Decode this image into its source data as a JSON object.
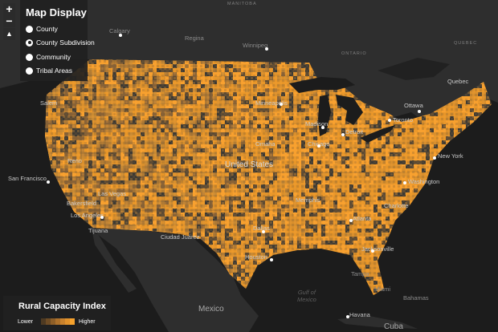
{
  "map": {
    "fill_palette": [
      "#f8a02e",
      "#e89628",
      "#d98f2c",
      "#c98a33",
      "#b07a34",
      "#8a6336",
      "#5c4a33",
      "#3d3a34"
    ],
    "land_color": "#2e2e2e",
    "water_color": "#1c1c1c",
    "labels": {
      "us": "United States",
      "canada_prov": "MANITOBA",
      "ontario": "ONTARIO",
      "quebec_prov": "QUEBEC",
      "mexico": "Mexico",
      "cuba": "Cuba",
      "bahamas": "Bahamas",
      "havana": "Havana",
      "gulf": "Gulf of\nMexico",
      "calgary": "Calgary",
      "regina": "Regina",
      "winnipeg": "Winnipeg",
      "quebec": "Quebec",
      "ottawa": "Ottawa",
      "toronto": "Toronto",
      "salem": "Salem",
      "minneapolis": "Minneapolis",
      "madison": "Madison",
      "detroit": "Detroit",
      "chicago": "Chicago",
      "omaha": "Omaha",
      "reno": "Reno",
      "san_francisco": "San Francisco",
      "new_york": "New York",
      "washington": "Washington",
      "las_vegas": "Las Vegas",
      "bakersfield": "Bakersfield",
      "los_angeles": "Los Angeles",
      "tijuana": "Tijuana",
      "memphis": "Memphis",
      "atlanta": "Atlanta",
      "charlotte": "Charlotte",
      "dallas": "Dallas",
      "ciudad_juarez": "Ciudad Juárez",
      "houston": "Houston",
      "jacksonville": "Jacksonville",
      "tampa": "Tampa",
      "miami": "Miami"
    }
  },
  "controls": {
    "zoom_in": "+",
    "zoom_out": "−",
    "compass": "▲"
  },
  "panel": {
    "title": "Map Display",
    "options": [
      {
        "label": "County",
        "selected": false
      },
      {
        "label": "County Subdivision",
        "selected": true
      },
      {
        "label": "Community",
        "selected": false
      },
      {
        "label": "Tribal Areas",
        "selected": false
      }
    ]
  },
  "legend": {
    "title": "Rural Capacity Index",
    "lower": "Lower",
    "higher": "Higher",
    "ramp": [
      "#4e3a22",
      "#6e4c25",
      "#8e5f28",
      "#ad712b",
      "#c9822d",
      "#e1922c",
      "#f6a22d"
    ]
  }
}
